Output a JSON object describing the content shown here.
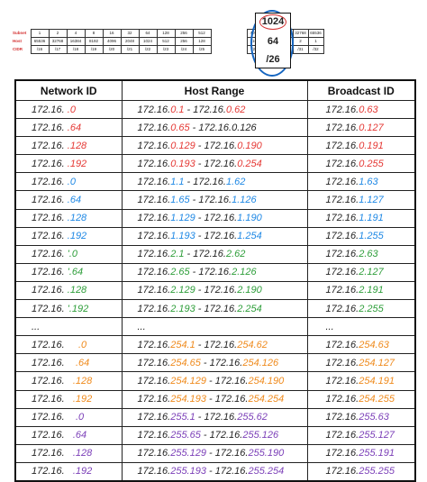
{
  "ref_table": {
    "row_labels": [
      "Subnet",
      "Host",
      "CIDR"
    ],
    "subnet_left": [
      "1",
      "2",
      "4",
      "8",
      "16",
      "32",
      "64",
      "128",
      "256",
      "512"
    ],
    "host_left": [
      "65536",
      "32768",
      "16384",
      "8192",
      "4096",
      "2048",
      "1024",
      "512",
      "256",
      "128"
    ],
    "cidr_left": [
      "/16",
      "/17",
      "/18",
      "/19",
      "/20",
      "/21",
      "/22",
      "/23",
      "/24",
      "/25"
    ],
    "subnet_right": [
      "4096",
      "8192",
      "16384",
      "32768",
      "65536"
    ],
    "host_right": [
      "16",
      "8",
      "4",
      "2",
      "1"
    ],
    "cidr_right": [
      "/28",
      "/29",
      "/30",
      "/31",
      "/32"
    ],
    "highlight": {
      "subnet": "1024",
      "host": "64",
      "cidr": "/26"
    }
  },
  "main_table": {
    "headers": [
      "Network ID",
      "Host Range",
      "Broadcast ID"
    ],
    "rows": [
      {
        "color": "red",
        "net": [
          [
            "172.16. ",
            ""
          ],
          [
            ".0",
            "c"
          ]
        ],
        "range": [
          [
            "172.16.",
            ""
          ],
          [
            "0.1",
            "c"
          ],
          [
            " - 172.16.",
            ""
          ],
          [
            "0.62",
            "c"
          ]
        ],
        "bcast": [
          [
            "172.16.",
            ""
          ],
          [
            "0.63",
            "c"
          ]
        ]
      },
      {
        "color": "red",
        "net": [
          [
            "172.16. ",
            ""
          ],
          [
            ".64",
            "c"
          ]
        ],
        "range": [
          [
            "172.16.",
            ""
          ],
          [
            "0.65",
            "c"
          ],
          [
            " - 172.16.0.126",
            ""
          ]
        ],
        "bcast": [
          [
            "172.16.",
            ""
          ],
          [
            "0.127",
            "c"
          ]
        ]
      },
      {
        "color": "red",
        "net": [
          [
            "172.16. ",
            ""
          ],
          [
            ".128",
            "c"
          ]
        ],
        "range": [
          [
            "172.16.",
            ""
          ],
          [
            "0.129",
            "c"
          ],
          [
            " - 172.16.",
            ""
          ],
          [
            "0.190",
            "c"
          ]
        ],
        "bcast": [
          [
            "172.16.",
            ""
          ],
          [
            "0.191",
            "c"
          ]
        ]
      },
      {
        "color": "red",
        "net": [
          [
            "172.16. ",
            ""
          ],
          [
            ".192",
            "c"
          ]
        ],
        "range": [
          [
            "172.16.",
            ""
          ],
          [
            "0.193",
            "c"
          ],
          [
            " - 172.16.",
            ""
          ],
          [
            "0.254",
            "c"
          ]
        ],
        "bcast": [
          [
            "172.16.",
            ""
          ],
          [
            "0.255",
            "c"
          ]
        ]
      },
      {
        "color": "blue",
        "net": [
          [
            "172.16. ",
            ""
          ],
          [
            ".0",
            "c"
          ]
        ],
        "range": [
          [
            "172.16.",
            ""
          ],
          [
            "1.1",
            "c"
          ],
          [
            " - 172.16.",
            ""
          ],
          [
            "1.62",
            "c"
          ]
        ],
        "bcast": [
          [
            "172.16.",
            ""
          ],
          [
            "1.63",
            "c"
          ]
        ]
      },
      {
        "color": "blue",
        "net": [
          [
            "172.16. ",
            ""
          ],
          [
            ".64",
            "c"
          ]
        ],
        "range": [
          [
            "172.16.",
            ""
          ],
          [
            "1.65",
            "c"
          ],
          [
            " - 172.16.",
            ""
          ],
          [
            "1.126",
            "c"
          ]
        ],
        "bcast": [
          [
            "172.16.",
            ""
          ],
          [
            "1.127",
            "c"
          ]
        ]
      },
      {
        "color": "blue",
        "net": [
          [
            "172.16. ",
            ""
          ],
          [
            ".128",
            "c"
          ]
        ],
        "range": [
          [
            "172.16.",
            ""
          ],
          [
            "1.129",
            "c"
          ],
          [
            " - 172.16.",
            ""
          ],
          [
            "1.190",
            "c"
          ]
        ],
        "bcast": [
          [
            "172.16.",
            ""
          ],
          [
            "1.191",
            "c"
          ]
        ]
      },
      {
        "color": "blue",
        "net": [
          [
            "172.16. ",
            ""
          ],
          [
            ".192",
            "c"
          ]
        ],
        "range": [
          [
            "172.16.",
            ""
          ],
          [
            "1.193",
            "c"
          ],
          [
            " - 172.16.",
            ""
          ],
          [
            "1.254",
            "c"
          ]
        ],
        "bcast": [
          [
            "172.16.",
            ""
          ],
          [
            "1.255",
            "c"
          ]
        ]
      },
      {
        "color": "green",
        "net": [
          [
            "172.16. ",
            ""
          ],
          [
            "'.0",
            "c"
          ]
        ],
        "range": [
          [
            "172.16.",
            ""
          ],
          [
            "2.1",
            "c"
          ],
          [
            " - 172.16.",
            ""
          ],
          [
            "2.62",
            "c"
          ]
        ],
        "bcast": [
          [
            "172.16.",
            ""
          ],
          [
            "2.63",
            "c"
          ]
        ]
      },
      {
        "color": "green",
        "net": [
          [
            "172.16. ",
            ""
          ],
          [
            "'.64",
            "c"
          ]
        ],
        "range": [
          [
            "172.16.",
            ""
          ],
          [
            "2.65",
            "c"
          ],
          [
            " - 172.16.",
            ""
          ],
          [
            "2.126",
            "c"
          ]
        ],
        "bcast": [
          [
            "172.16.",
            ""
          ],
          [
            "2.127",
            "c"
          ]
        ]
      },
      {
        "color": "green",
        "net": [
          [
            "172.16. ",
            ""
          ],
          [
            ".128",
            "c"
          ]
        ],
        "range": [
          [
            "172.16.",
            ""
          ],
          [
            "2.129",
            "c"
          ],
          [
            " - 172.16.",
            ""
          ],
          [
            "2.190",
            "c"
          ]
        ],
        "bcast": [
          [
            "172.16.",
            ""
          ],
          [
            "2.191",
            "c"
          ]
        ]
      },
      {
        "color": "green",
        "net": [
          [
            "172.16. ",
            ""
          ],
          [
            "'.192",
            "c"
          ]
        ],
        "range": [
          [
            "172.16.",
            ""
          ],
          [
            "2.193",
            "c"
          ],
          [
            " - 172.16.",
            ""
          ],
          [
            "2.254",
            "c"
          ]
        ],
        "bcast": [
          [
            "172.16.",
            ""
          ],
          [
            "2.255",
            "c"
          ]
        ]
      },
      {
        "color": "",
        "net": [
          [
            "...",
            ""
          ]
        ],
        "range": [
          [
            "...",
            ""
          ]
        ],
        "bcast": [
          [
            "...",
            ""
          ]
        ]
      },
      {
        "color": "orange",
        "net": [
          [
            "172.16.     ",
            ""
          ],
          [
            ".0",
            "c"
          ]
        ],
        "range": [
          [
            "172.16.",
            ""
          ],
          [
            "254.1",
            "c"
          ],
          [
            " - 172.16.",
            ""
          ],
          [
            "254.62",
            "c"
          ]
        ],
        "bcast": [
          [
            "172.16.",
            ""
          ],
          [
            "254.63",
            "c"
          ]
        ]
      },
      {
        "color": "orange",
        "net": [
          [
            "172.16.    ",
            ""
          ],
          [
            ".64",
            "c"
          ]
        ],
        "range": [
          [
            "172.16.",
            ""
          ],
          [
            "254.65",
            "c"
          ],
          [
            " - 172.16.",
            ""
          ],
          [
            "254.126",
            "c"
          ]
        ],
        "bcast": [
          [
            "172.16.",
            ""
          ],
          [
            "254.127",
            "c"
          ]
        ]
      },
      {
        "color": "orange",
        "net": [
          [
            "172.16.   ",
            ""
          ],
          [
            ".128",
            "c"
          ]
        ],
        "range": [
          [
            "172.16.",
            ""
          ],
          [
            "254.129",
            "c"
          ],
          [
            " - 172.16.",
            ""
          ],
          [
            "254.190",
            "c"
          ]
        ],
        "bcast": [
          [
            "172.16.",
            ""
          ],
          [
            "254.191",
            "c"
          ]
        ]
      },
      {
        "color": "orange",
        "net": [
          [
            "172.16.   ",
            ""
          ],
          [
            ".192",
            "c"
          ]
        ],
        "range": [
          [
            "172.16.",
            ""
          ],
          [
            "254.193",
            "c"
          ],
          [
            " - 172.16.",
            ""
          ],
          [
            "254.254",
            "c"
          ]
        ],
        "bcast": [
          [
            "172.16.",
            ""
          ],
          [
            "254.255",
            "c"
          ]
        ]
      },
      {
        "color": "purple",
        "net": [
          [
            "172.16.    ",
            ""
          ],
          [
            ".0",
            "c"
          ]
        ],
        "range": [
          [
            "172.16.",
            ""
          ],
          [
            "255.1",
            "c"
          ],
          [
            " - 172.16.",
            ""
          ],
          [
            "255.62",
            "c"
          ]
        ],
        "bcast": [
          [
            "172.16.",
            ""
          ],
          [
            "255.63",
            "c"
          ]
        ]
      },
      {
        "color": "purple",
        "net": [
          [
            "172.16.   ",
            ""
          ],
          [
            ".64",
            "c"
          ]
        ],
        "range": [
          [
            "172.16.",
            ""
          ],
          [
            "255.65",
            "c"
          ],
          [
            " - 172.16.",
            ""
          ],
          [
            "255.126",
            "c"
          ]
        ],
        "bcast": [
          [
            "172.16.",
            ""
          ],
          [
            "255.127",
            "c"
          ]
        ]
      },
      {
        "color": "purple",
        "net": [
          [
            "172.16.   ",
            ""
          ],
          [
            ".128",
            "c"
          ]
        ],
        "range": [
          [
            "172.16.",
            ""
          ],
          [
            "255.129",
            "c"
          ],
          [
            " - 172.16.",
            ""
          ],
          [
            "255.190",
            "c"
          ]
        ],
        "bcast": [
          [
            "172.16.",
            ""
          ],
          [
            "255.191",
            "c"
          ]
        ]
      },
      {
        "color": "purple",
        "net": [
          [
            "172.16.   ",
            ""
          ],
          [
            ".192",
            "c"
          ]
        ],
        "range": [
          [
            "172.16.",
            ""
          ],
          [
            "255.193",
            "c"
          ],
          [
            " - 172.16.",
            ""
          ],
          [
            "255.254",
            "c"
          ]
        ],
        "bcast": [
          [
            "172.16.",
            ""
          ],
          [
            "255.255",
            "c"
          ]
        ]
      }
    ]
  }
}
